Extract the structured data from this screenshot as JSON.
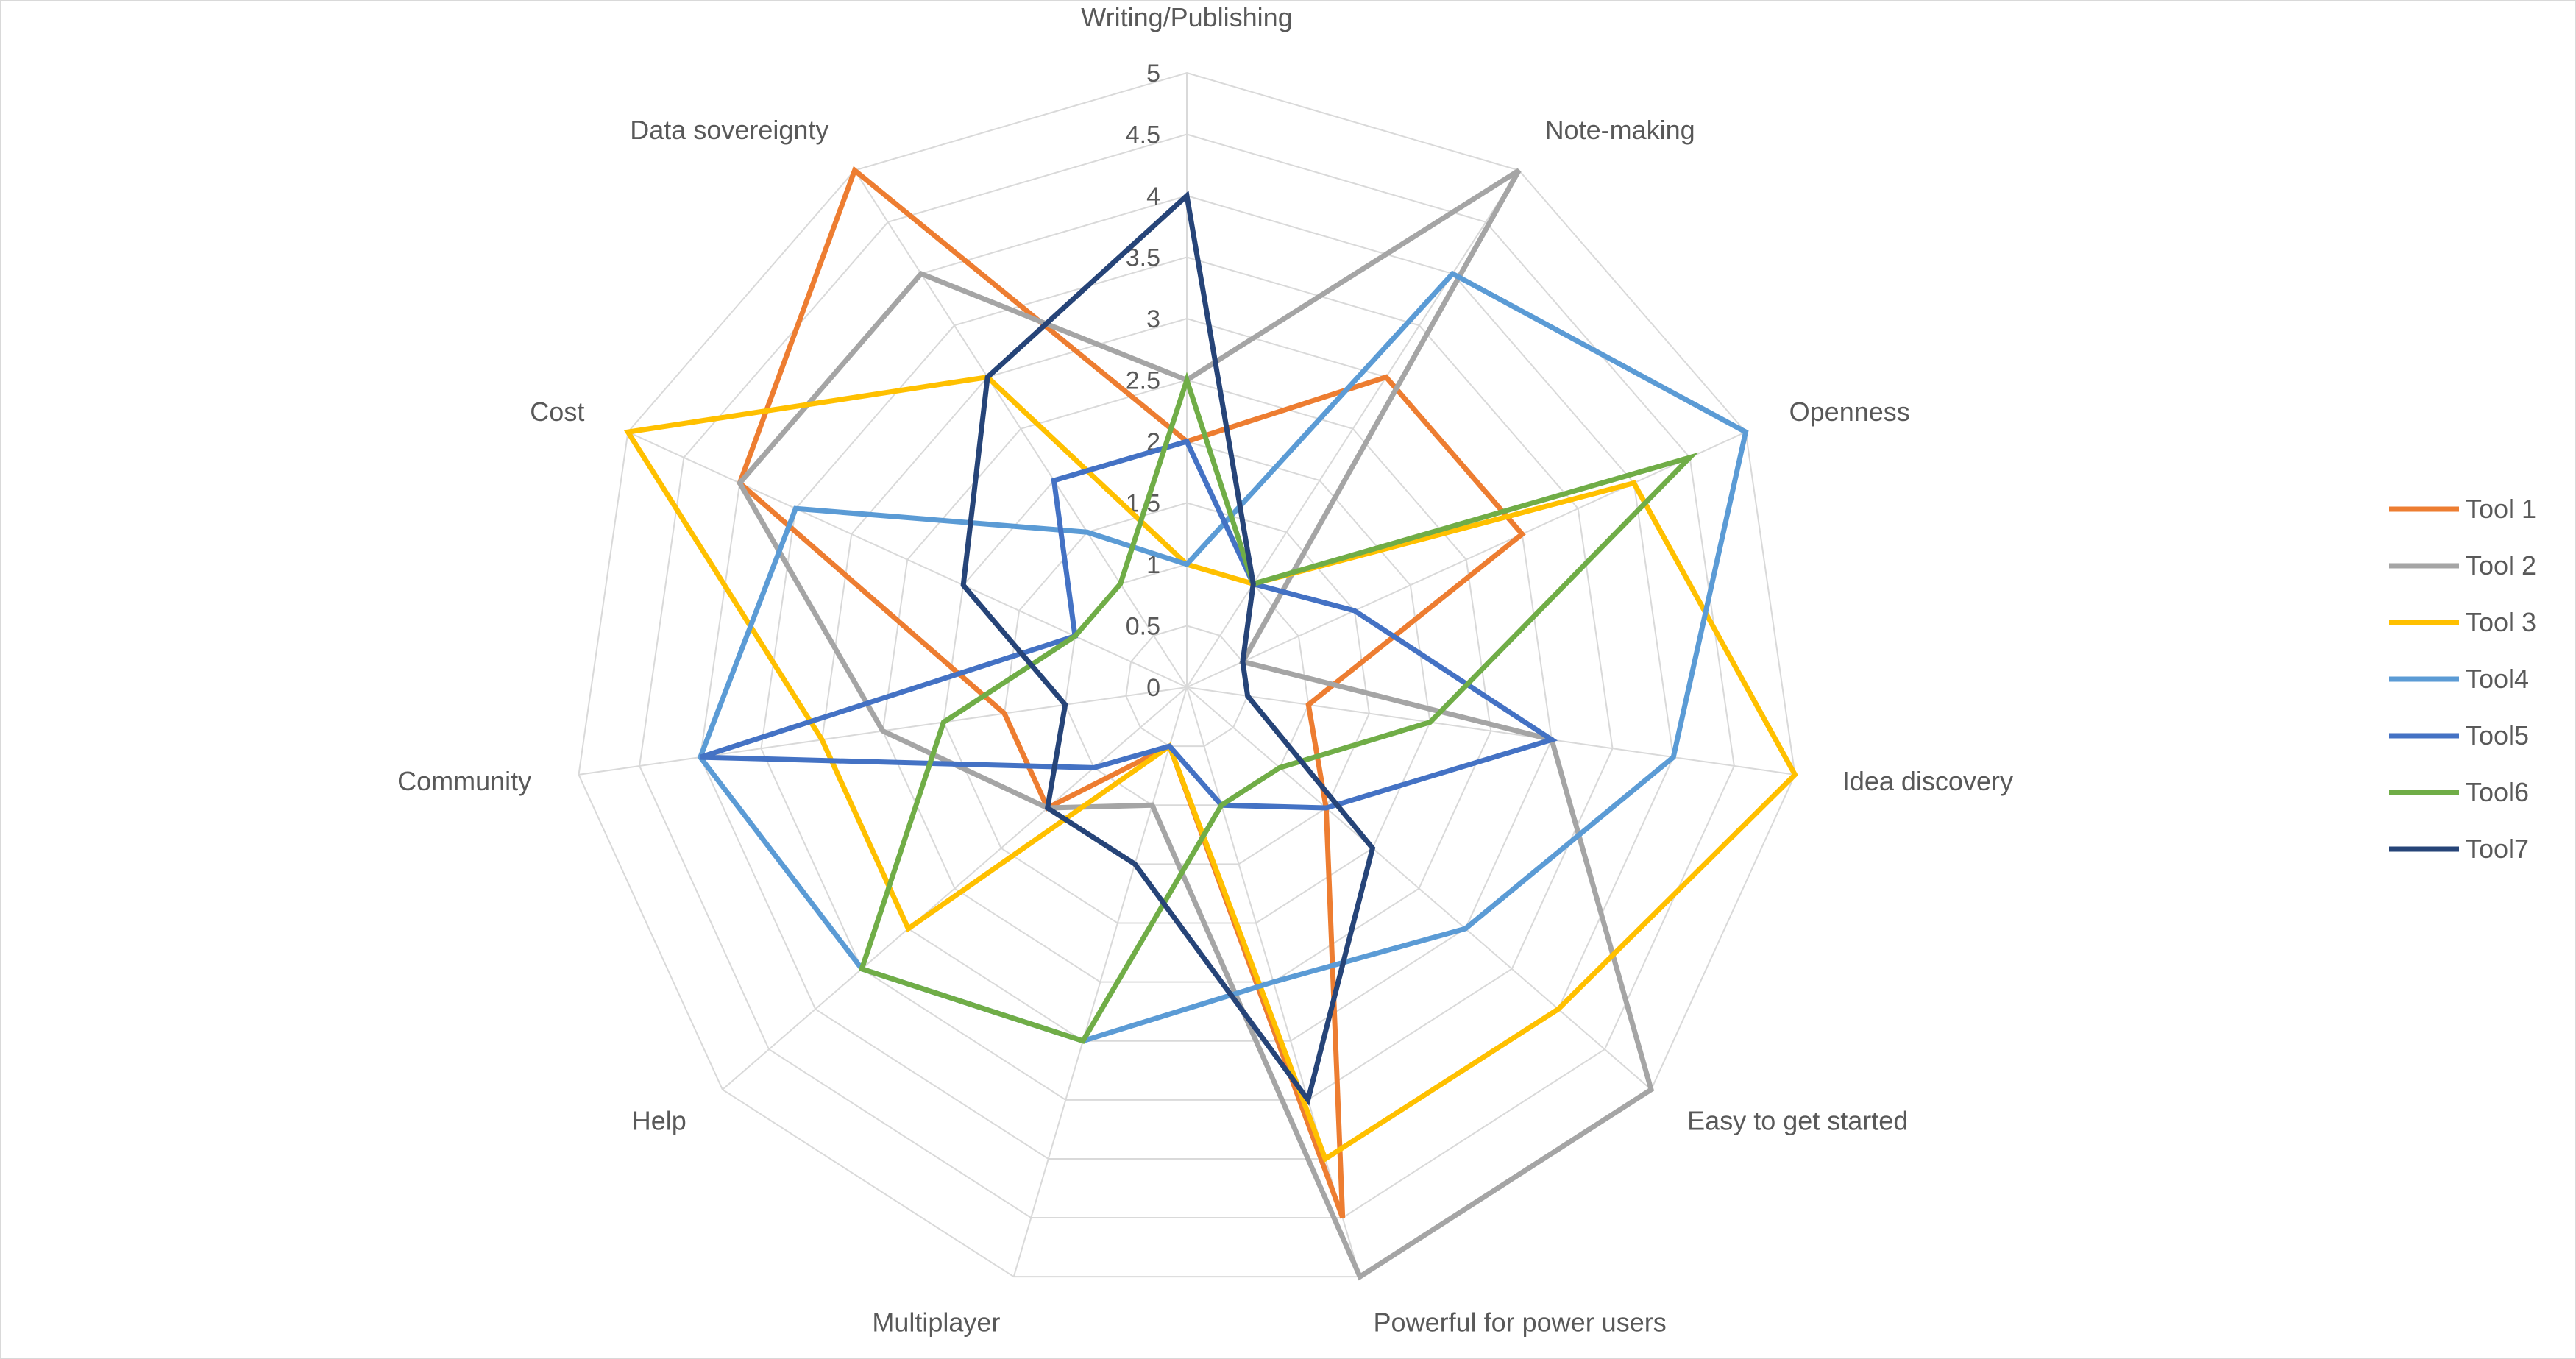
{
  "chart_data": {
    "type": "radar",
    "title": "",
    "axes": [
      "Writing/Publishing",
      "Note-making",
      "Openness",
      "Idea discovery",
      "Easy to get started",
      "Powerful for power users",
      "Multiplayer",
      "Help",
      "Community",
      "Cost",
      "Data sovereignty"
    ],
    "rlim": [
      0,
      5
    ],
    "ticks": [
      "0",
      "0.5",
      "1",
      "1.5",
      "2",
      "2.5",
      "3",
      "3.5",
      "4",
      "4.5",
      "5"
    ],
    "grid": true,
    "legend_position": "right",
    "series": [
      {
        "name": "Tool 1",
        "color": "#ED7D31",
        "values": [
          2,
          3,
          3,
          1,
          1.5,
          4.5,
          0.5,
          1.5,
          1.5,
          4,
          5
        ]
      },
      {
        "name": "Tool 2",
        "color": "#A5A5A5",
        "values": [
          2.5,
          5,
          0.5,
          3,
          5,
          5,
          1,
          1.5,
          2.5,
          4,
          4
        ]
      },
      {
        "name": "Tool 3",
        "color": "#FFC000",
        "values": [
          1,
          1,
          4,
          5,
          4,
          4,
          0.5,
          3,
          3,
          5,
          3
        ]
      },
      {
        "name": "Tool4",
        "color": "#5B9BD5",
        "values": [
          1,
          4,
          5,
          4,
          3,
          2.5,
          3,
          3.5,
          4,
          3.5,
          1.5
        ]
      },
      {
        "name": "Tool5",
        "color": "#4472C4",
        "values": [
          2,
          1,
          1.5,
          3,
          1.5,
          1,
          0.5,
          1,
          4,
          1,
          2
        ]
      },
      {
        "name": "Tool6",
        "color": "#70AD47",
        "values": [
          2.5,
          1,
          4.5,
          2,
          1,
          1,
          3,
          3.5,
          2,
          1,
          1
        ]
      },
      {
        "name": "Tool7",
        "color": "#264478",
        "values": [
          4,
          1,
          0.5,
          0.5,
          2,
          3.5,
          1.5,
          1.5,
          1,
          2,
          3
        ]
      }
    ]
  }
}
